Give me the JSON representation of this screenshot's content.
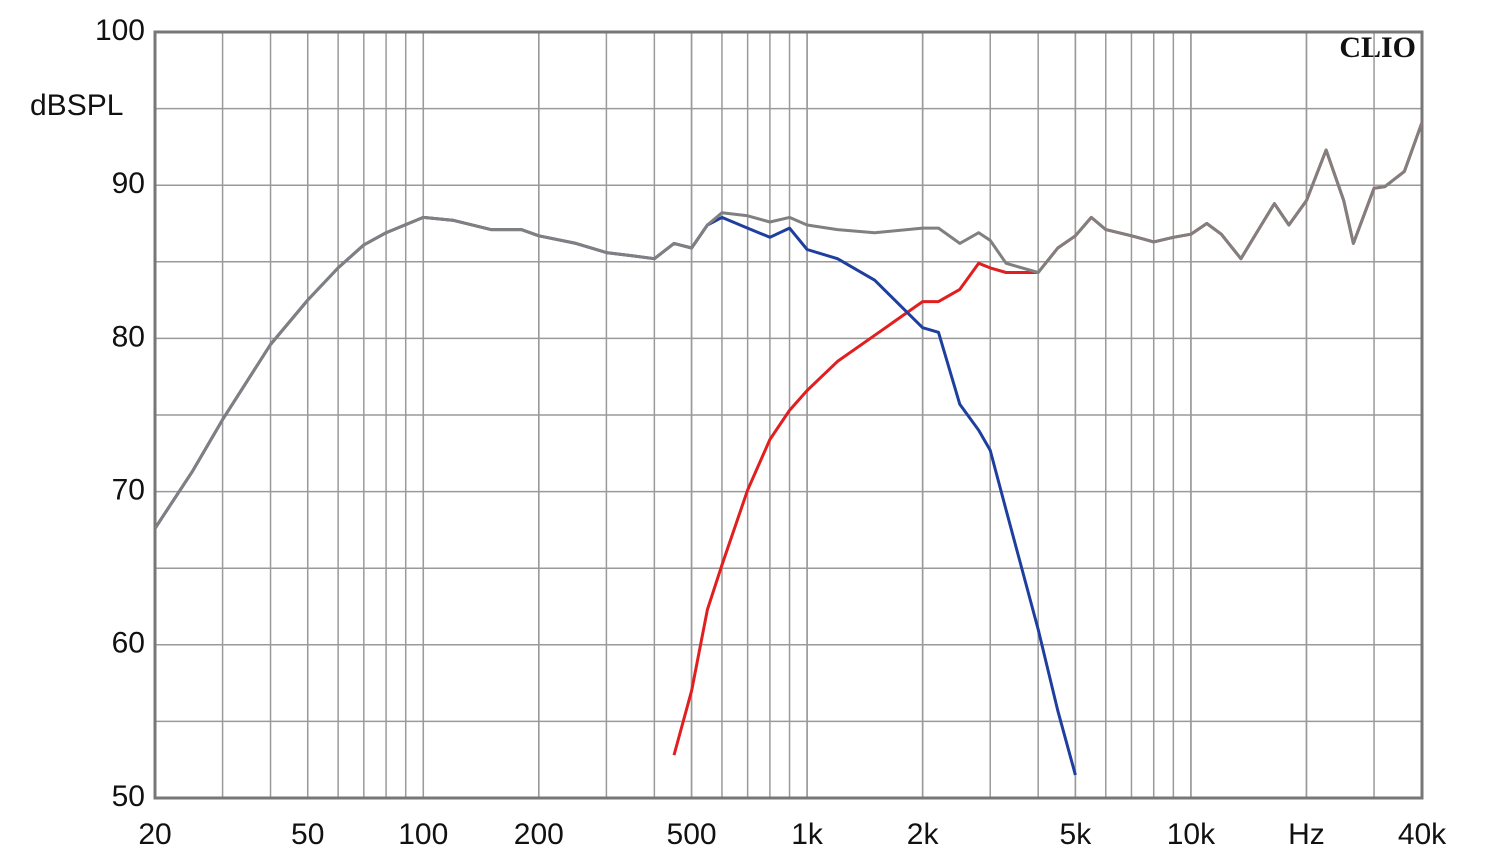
{
  "chart_data": {
    "type": "line",
    "ylabel": "dBSPL",
    "annotation": "CLIO",
    "xscale": "log",
    "grid": true,
    "xlim": [
      20,
      40000
    ],
    "ylim": [
      50,
      100
    ],
    "xticks": [
      20,
      50,
      100,
      200,
      500,
      {
        "value": 1000,
        "label": "1k"
      },
      {
        "value": 2000,
        "label": "2k"
      },
      {
        "value": 5000,
        "label": "5k"
      },
      {
        "value": 10000,
        "label": "10k"
      },
      {
        "value": 20000,
        "label": "Hz"
      },
      {
        "value": 40000,
        "label": "40k"
      }
    ],
    "yticks": [
      50,
      60,
      70,
      80,
      90,
      100
    ],
    "x": [
      20,
      25,
      30,
      40,
      50,
      60,
      70,
      80,
      100,
      120,
      150,
      180,
      200,
      250,
      300,
      350,
      400,
      450,
      500,
      550,
      600,
      700,
      800,
      900,
      1000,
      1200,
      1500,
      2000,
      2200,
      2500,
      2800,
      3000,
      3300,
      4000,
      4500,
      5000,
      5500,
      6000,
      7000,
      8000,
      9000,
      10000,
      11000,
      12000,
      13500,
      15000,
      16500,
      18000,
      20000,
      22500,
      25000,
      26500,
      30000,
      32000,
      36000,
      40000
    ],
    "series": [
      {
        "color": "#e02020",
        "values": [
          null,
          null,
          null,
          null,
          null,
          null,
          null,
          null,
          null,
          null,
          null,
          null,
          null,
          null,
          null,
          null,
          null,
          52.8,
          57.0,
          62.3,
          65.2,
          70.1,
          73.4,
          75.3,
          76.6,
          78.5,
          80.2,
          82.4,
          82.4,
          83.2,
          84.9,
          84.6,
          84.3,
          84.3,
          85.9,
          86.7,
          87.9,
          87.1,
          86.7,
          86.3,
          86.6,
          86.8,
          87.5,
          86.8,
          85.2,
          87.1,
          88.8,
          87.4,
          89.0,
          92.3,
          89.0,
          86.2,
          89.8,
          89.9,
          90.9,
          94.1
        ]
      },
      {
        "color": "#1f3f9f",
        "values": [
          67.6,
          71.3,
          74.7,
          79.6,
          82.5,
          84.6,
          86.1,
          86.9,
          87.9,
          87.7,
          87.1,
          87.1,
          86.7,
          86.2,
          85.6,
          85.4,
          85.2,
          86.2,
          85.9,
          87.4,
          87.9,
          87.2,
          86.6,
          87.2,
          85.8,
          85.2,
          83.8,
          80.7,
          80.4,
          75.7,
          74.0,
          72.7,
          68.8,
          61.0,
          55.7,
          51.5,
          null,
          null,
          null,
          null,
          null,
          null,
          null,
          null,
          null,
          null,
          null,
          null,
          null,
          null,
          null,
          null,
          null,
          null,
          null,
          null
        ]
      },
      {
        "color": "#808080",
        "values": [
          67.6,
          71.3,
          74.7,
          79.6,
          82.5,
          84.6,
          86.1,
          86.9,
          87.9,
          87.7,
          87.1,
          87.1,
          86.7,
          86.2,
          85.6,
          85.4,
          85.2,
          86.2,
          85.9,
          87.4,
          88.2,
          88.0,
          87.6,
          87.9,
          87.4,
          87.1,
          86.9,
          87.2,
          87.2,
          86.2,
          86.9,
          86.4,
          84.9,
          84.3,
          85.9,
          86.7,
          87.9,
          87.1,
          86.7,
          86.3,
          86.6,
          86.8,
          87.5,
          86.8,
          85.2,
          87.1,
          88.8,
          87.4,
          89.0,
          92.3,
          89.0,
          86.2,
          89.8,
          89.9,
          90.9,
          94.1
        ]
      }
    ]
  }
}
